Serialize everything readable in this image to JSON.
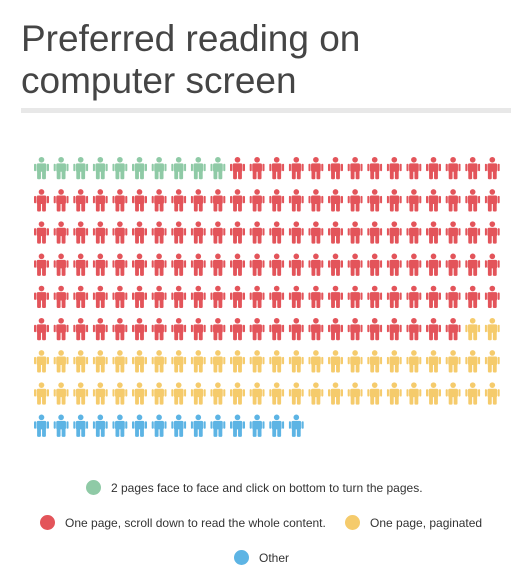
{
  "title": "Preferred reading on computer screen",
  "colors": {
    "text": "#454545",
    "rule": "#e8e8e8"
  },
  "chart_data": {
    "type": "pictogram",
    "icon": "person-icon",
    "columns": 24,
    "series": [
      {
        "name": "2 pages face to face and click on bottom to turn the pages.",
        "count": 10,
        "color": "#8fcaa6"
      },
      {
        "name": "One page, scroll down to read the whole content.",
        "count": 132,
        "color": "#e3545a"
      },
      {
        "name": "One page, paginated",
        "count": 50,
        "color": "#f5cb6c"
      },
      {
        "name": "Other",
        "count": 14,
        "color": "#5db4e4"
      }
    ]
  }
}
